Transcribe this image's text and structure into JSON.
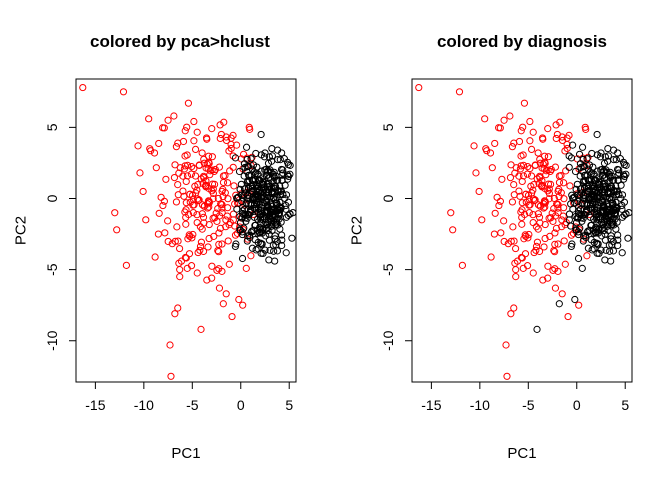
{
  "chart_data": [
    {
      "type": "scatter",
      "title": "colored by pca>hclust",
      "xlabel": "PC1",
      "ylabel": "PC2",
      "xlim": [
        -17,
        5.7
      ],
      "ylim": [
        -12.9,
        8.4
      ],
      "xticks": [
        -15,
        -10,
        -5,
        0,
        5
      ],
      "yticks": [
        -10,
        -5,
        0,
        5
      ],
      "xtick_labels": [
        "-15",
        "-10",
        "-5",
        "0",
        "5"
      ],
      "ytick_labels": [
        "-10",
        "-5",
        "0",
        "5"
      ],
      "grid": false,
      "series": [
        {
          "color": "#ff0000",
          "points": "outliers+red_cloud"
        },
        {
          "color": "#000000",
          "points": "black_cluster"
        }
      ]
    },
    {
      "type": "scatter",
      "title": "colored by diagnosis",
      "xlabel": "PC1",
      "ylabel": "PC2",
      "xlim": [
        -17,
        5.7
      ],
      "ylim": [
        -12.9,
        8.4
      ],
      "xticks": [
        -15,
        -10,
        -5,
        0,
        5
      ],
      "yticks": [
        -10,
        -5,
        0,
        5
      ],
      "xtick_labels": [
        "-15",
        "-10",
        "-5",
        "0",
        "5"
      ],
      "ytick_labels": [
        "-10",
        "-5",
        "0",
        "5"
      ],
      "grid": false,
      "series": [
        {
          "color": "#ff0000",
          "points": "outliers+red_cloud"
        },
        {
          "color": "#000000",
          "points": "black_cluster"
        }
      ]
    }
  ],
  "points": {
    "outliers": [
      [
        -16.3,
        7.8
      ],
      [
        -12.1,
        7.5
      ],
      [
        -13,
        -1
      ],
      [
        -12.8,
        -2.2
      ],
      [
        -11.8,
        -4.7
      ],
      [
        -10.4,
        1.8
      ],
      [
        -10.6,
        3.7
      ],
      [
        -9.5,
        5.6
      ],
      [
        -8.9,
        3.2
      ],
      [
        -7.5,
        5.5
      ],
      [
        -6.9,
        5.8
      ],
      [
        -5.4,
        6.7
      ],
      [
        -6.5,
        -7.7
      ],
      [
        -6.8,
        -8.1
      ],
      [
        -7.3,
        -10.3
      ],
      [
        -7.2,
        -12.5
      ],
      [
        -4.1,
        -9.2
      ],
      [
        -2.2,
        -6.3
      ],
      [
        -1.5,
        -6.7
      ],
      [
        -1.8,
        -7.4
      ],
      [
        -0.2,
        -7.1
      ],
      [
        0.2,
        -7.5
      ],
      [
        -0.9,
        -8.3
      ],
      [
        -3,
        -5.6
      ],
      [
        -4.4,
        -3.8
      ],
      [
        -6.3,
        -5
      ],
      [
        -8.5,
        -2.5
      ],
      [
        -9.8,
        -1.5
      ],
      [
        -2,
        4.5
      ],
      [
        -1,
        3.8
      ]
    ],
    "red_cloud": {
      "seed": 2024,
      "count": 230,
      "cx": -3.2,
      "cy": 0.5,
      "sx": 2.8,
      "sy": 2.7
    },
    "black_cluster": {
      "seed": 77,
      "count": 340,
      "cx": 2.3,
      "cy": -0.2,
      "sx": 1.6,
      "sy": 1.9
    },
    "black_extra": [
      [
        2.1,
        4.5
      ],
      [
        0.6,
        3.6
      ],
      [
        3.5,
        -4.4
      ],
      [
        1.2,
        -3.5
      ],
      [
        -0.5,
        -3.2
      ],
      [
        -0.1,
        -2.2
      ],
      [
        3.8,
        3.4
      ],
      [
        4.5,
        2.8
      ],
      [
        2.5,
        3.2
      ],
      [
        0.9,
        -2.6
      ]
    ]
  }
}
